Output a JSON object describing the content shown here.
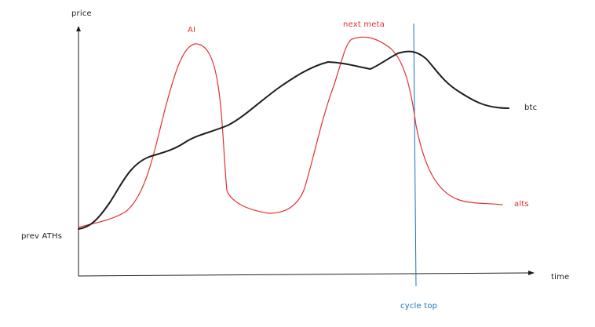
{
  "axes": {
    "y_label": "price",
    "x_label": "time",
    "baseline_label": "prev ATHs"
  },
  "series": [
    {
      "name": "btc",
      "color": "#1e1e1e"
    },
    {
      "name": "alts",
      "color": "#e03131"
    }
  ],
  "annotations": {
    "alt_peak_1": "AI",
    "alt_peak_2": "next meta",
    "marker": "cycle top",
    "marker_color": "#1971c2"
  }
}
